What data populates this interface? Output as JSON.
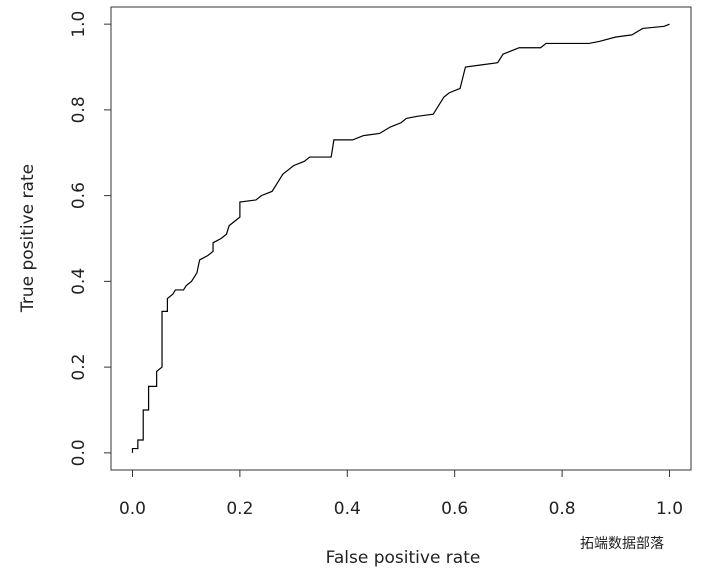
{
  "chart_data": {
    "type": "line",
    "xlabel": "False positive rate",
    "ylabel": "True positive rate",
    "annotation": "拓端数据部落",
    "color": "#000000",
    "x": [
      0,
      0,
      0.01,
      0.01,
      0.02,
      0.02,
      0.03,
      0.03,
      0.045,
      0.045,
      0.055,
      0.055,
      0.065,
      0.065,
      0.075,
      0.08,
      0.095,
      0.1,
      0.11,
      0.12,
      0.125,
      0.14,
      0.15,
      0.15,
      0.165,
      0.175,
      0.18,
      0.19,
      0.2,
      0.2,
      0.23,
      0.24,
      0.26,
      0.27,
      0.28,
      0.29,
      0.3,
      0.32,
      0.33,
      0.37,
      0.375,
      0.41,
      0.43,
      0.46,
      0.48,
      0.5,
      0.51,
      0.53,
      0.56,
      0.57,
      0.58,
      0.59,
      0.61,
      0.62,
      0.65,
      0.68,
      0.69,
      0.72,
      0.76,
      0.77,
      0.85,
      0.87,
      0.9,
      0.93,
      0.95,
      0.99,
      1.0
    ],
    "values": [
      0,
      0.01,
      0.01,
      0.03,
      0.03,
      0.1,
      0.1,
      0.155,
      0.155,
      0.19,
      0.2,
      0.33,
      0.33,
      0.36,
      0.37,
      0.38,
      0.38,
      0.39,
      0.4,
      0.42,
      0.45,
      0.46,
      0.47,
      0.49,
      0.5,
      0.51,
      0.53,
      0.54,
      0.55,
      0.585,
      0.59,
      0.6,
      0.61,
      0.63,
      0.65,
      0.66,
      0.67,
      0.68,
      0.69,
      0.69,
      0.73,
      0.73,
      0.74,
      0.745,
      0.76,
      0.77,
      0.78,
      0.785,
      0.79,
      0.81,
      0.83,
      0.84,
      0.85,
      0.9,
      0.905,
      0.91,
      0.93,
      0.945,
      0.945,
      0.955,
      0.955,
      0.96,
      0.97,
      0.975,
      0.99,
      0.995,
      1.0
    ],
    "xlim": [
      -0.04,
      1.04
    ],
    "ylim": [
      -0.04,
      1.04
    ],
    "xticks": [
      {
        "value": 0,
        "label": "0.0"
      },
      0.2,
      0.4,
      0.6,
      0.8,
      {
        "value": 1,
        "label": "1.0"
      }
    ],
    "yticks": [
      {
        "value": 0,
        "label": "0.0"
      },
      0.2,
      0.4,
      0.6,
      0.8,
      {
        "value": 1,
        "label": "1.0"
      }
    ]
  }
}
